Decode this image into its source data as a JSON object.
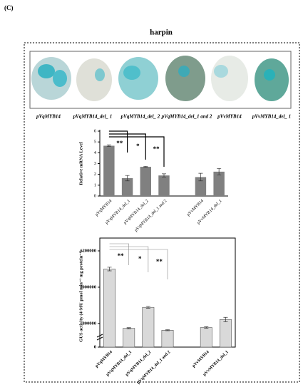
{
  "panel_label": "(C)",
  "title": "harpin",
  "leaf_labels": [
    "pVqMYB14",
    "pVqMYB14_del_ 1",
    "pVqMYB14_del_ 2",
    "pVqMYB14_del_1 and 2",
    "pVvMYB14",
    "pVvMYB14_del_ 1"
  ],
  "chart_data": [
    {
      "type": "bar",
      "ylabel": "Relative mRNA Level",
      "categories": [
        "pVqMYB14",
        "pVqMYB14_del_1",
        "pVqMYB14_del_2",
        "pVqMYB14_del_1 and 2",
        null,
        "pVvMYB14",
        "pVvMYB14_del_1"
      ],
      "values": [
        4.65,
        1.65,
        2.7,
        1.9,
        null,
        1.75,
        2.25
      ],
      "errors": [
        0.08,
        0.25,
        0.04,
        0.15,
        null,
        0.35,
        0.3
      ],
      "annotations": [
        "**",
        "*",
        "**"
      ],
      "color": "#808080",
      "ylim": [
        0,
        6
      ],
      "yticks": [
        0,
        1,
        2,
        3,
        4,
        5,
        6
      ]
    },
    {
      "type": "bar",
      "ylabel": "GUS activity (4-MU pmol min⁻¹ mg protein⁻¹)",
      "categories": [
        "pVqMYB14",
        "pVqMYB14_del_1",
        "pVqMYB14_del_2",
        "pVqMYB14_del_1 and 2",
        null,
        "pVvMYB14",
        "pVvMYB14_del_1"
      ],
      "values": [
        1100000,
        774000,
        889000,
        763000,
        null,
        778000,
        822000
      ],
      "errors": [
        10000,
        3000,
        5000,
        3000,
        null,
        4000,
        12000
      ],
      "annotations": [
        "**",
        "*",
        "**"
      ],
      "color": "#d9d9d9",
      "ylim": [
        0,
        1200000
      ],
      "yticks": [
        0,
        800000,
        1000000,
        1200000
      ],
      "broken_axis": true
    }
  ]
}
